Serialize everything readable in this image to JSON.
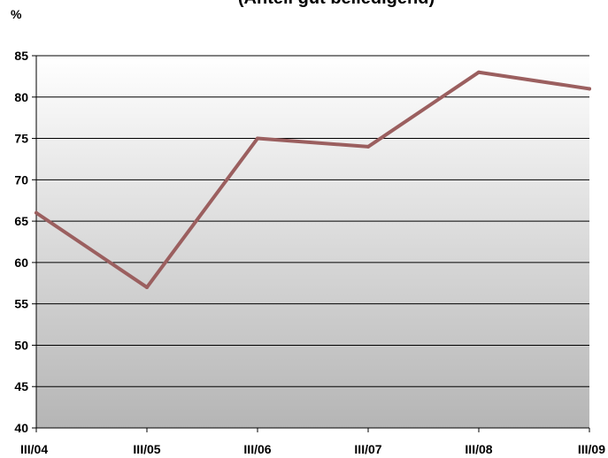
{
  "chart_data": {
    "type": "line",
    "title": "(Anteil gut beliedigend)",
    "ylabel": "%",
    "xlabel": "",
    "categories": [
      "III/04",
      "III/05",
      "III/06",
      "III/07",
      "III/08",
      "III/09"
    ],
    "series": [
      {
        "values": [
          66,
          57,
          75,
          74,
          83,
          81
        ],
        "color": "#9b5f5f"
      }
    ],
    "ylim": [
      40,
      85
    ],
    "yticks": [
      40,
      45,
      50,
      55,
      60,
      65,
      70,
      75,
      80,
      85
    ],
    "grid": true,
    "background_gradient": [
      "#ffffff",
      "#b5b5b5"
    ]
  }
}
